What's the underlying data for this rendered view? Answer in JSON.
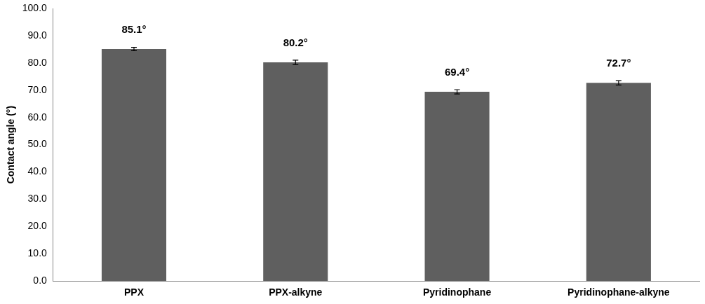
{
  "chart_data": {
    "type": "bar",
    "ylabel": "Contact angle (°)",
    "categories": [
      "PPX",
      "PPX-alkyne",
      "Pyridinophane",
      "Pyridinophane-alkyne"
    ],
    "values": [
      85.1,
      80.2,
      69.4,
      72.7
    ],
    "errors": [
      0.6,
      0.8,
      0.8,
      0.8
    ],
    "value_labels": [
      "85.1°",
      "80.2°",
      "69.4°",
      "72.7°"
    ],
    "color": "#5f5f5f",
    "ylim": [
      0,
      100
    ],
    "yticks": [
      {
        "value": 0,
        "label": "0.0"
      },
      {
        "value": 10,
        "label": "10.0"
      },
      {
        "value": 20,
        "label": "20.0"
      },
      {
        "value": 30,
        "label": "30.0"
      },
      {
        "value": 40,
        "label": "40.0"
      },
      {
        "value": 50,
        "label": "50.0"
      },
      {
        "value": 60,
        "label": "60.0"
      },
      {
        "value": 70,
        "label": "70.0"
      },
      {
        "value": 80,
        "label": "80.0"
      },
      {
        "value": 90,
        "label": "90.0"
      },
      {
        "value": 100,
        "label": "100.0"
      }
    ],
    "grid": false,
    "legend": false
  }
}
